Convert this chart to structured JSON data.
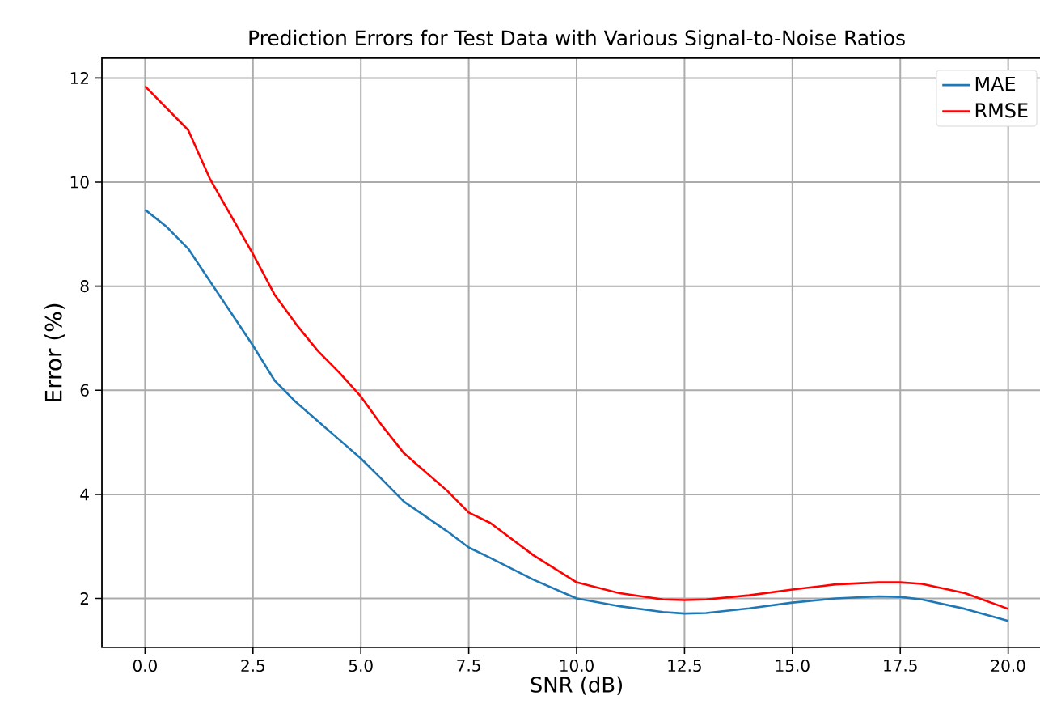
{
  "chart_data": {
    "type": "line",
    "title": "Prediction Errors for Test Data with Various Signal-to-Noise Ratios",
    "xlabel": "SNR (dB)",
    "ylabel": "Error (%)",
    "xlim": [
      -1,
      21
    ],
    "ylim": [
      1.06,
      12.38
    ],
    "xticks": [
      {
        "value": 0,
        "label": "0.0"
      },
      {
        "value": 2.5,
        "label": "2.5"
      },
      {
        "value": 5,
        "label": "5.0"
      },
      {
        "value": 7.5,
        "label": "7.5"
      },
      {
        "value": 10,
        "label": "10.0"
      },
      {
        "value": 12.5,
        "label": "12.5"
      },
      {
        "value": 15,
        "label": "15.0"
      },
      {
        "value": 17.5,
        "label": "17.5"
      },
      {
        "value": 20,
        "label": "20.0"
      }
    ],
    "yticks": [
      2,
      4,
      6,
      8,
      10,
      12
    ],
    "grid": true,
    "legend": "top right",
    "series": [
      {
        "name": "MAE",
        "color": "#1f77b4",
        "x": [
          0,
          0.5,
          1,
          1.5,
          2,
          2.5,
          3,
          3.5,
          4,
          4.5,
          5,
          5.5,
          6,
          7,
          7.5,
          8,
          9,
          10,
          11,
          12,
          12.5,
          13,
          14,
          15,
          16,
          17,
          17.5,
          18,
          19,
          20
        ],
        "values": [
          9.47,
          9.14,
          8.72,
          8.1,
          7.48,
          6.86,
          6.19,
          5.77,
          5.41,
          5.05,
          4.69,
          4.28,
          3.86,
          3.29,
          2.98,
          2.78,
          2.36,
          2.0,
          1.85,
          1.74,
          1.71,
          1.72,
          1.81,
          1.92,
          2.0,
          2.04,
          2.03,
          1.98,
          1.8,
          1.57
        ]
      },
      {
        "name": "RMSE",
        "color": "#ff0000",
        "x": [
          0,
          1,
          1.5,
          2,
          2.5,
          3,
          3.5,
          4,
          4.5,
          5,
          5.5,
          6,
          7,
          7.5,
          8,
          9,
          10,
          11,
          12,
          12.5,
          13,
          14,
          15,
          16,
          17,
          17.5,
          18,
          19,
          20
        ],
        "values": [
          11.84,
          11.0,
          10.07,
          9.34,
          8.62,
          7.84,
          7.27,
          6.76,
          6.34,
          5.88,
          5.31,
          4.79,
          4.07,
          3.65,
          3.45,
          2.83,
          2.31,
          2.1,
          1.98,
          1.97,
          1.98,
          2.06,
          2.17,
          2.27,
          2.31,
          2.31,
          2.28,
          2.1,
          1.8
        ]
      }
    ]
  }
}
